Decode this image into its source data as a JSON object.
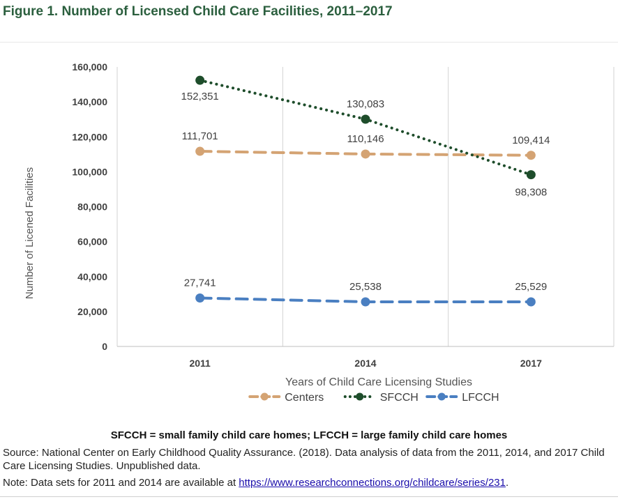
{
  "page": {
    "title": "Figure 1. Number of Licensed Child Care Facilities, 2011–2017",
    "abbreviations": "SFCCH = small family child care homes; LFCCH = large family child care homes",
    "source": "Source: National Center on Early Childhood Quality Assurance. (2018). Data analysis of data from the 2011, 2014, and 2017 Child Care Licensing Studies. Unpublished data.",
    "note_prefix": "Note: Data sets for 2011 and 2014 are available at ",
    "note_link": "https://www.researchconnections.org/childcare/series/231",
    "note_suffix": "."
  },
  "chart_data": {
    "type": "line",
    "title": "",
    "xlabel": "Years of Child Care Licensing Studies",
    "ylabel": "Number of Licened Facilities",
    "categories": [
      "2011",
      "2014",
      "2017"
    ],
    "ylim": [
      0,
      160000
    ],
    "yticks": [
      0,
      20000,
      40000,
      60000,
      80000,
      100000,
      120000,
      140000,
      160000
    ],
    "ytick_labels": [
      "0",
      "20,000",
      "40,000",
      "60,000",
      "80,000",
      "100,000",
      "120,000",
      "140,000",
      "160,000"
    ],
    "grid": "vertical",
    "legend_position": "bottom",
    "series": [
      {
        "name": "Centers",
        "values": [
          111701,
          110146,
          109414
        ],
        "labels": [
          "111,701",
          "110,146",
          "109,414"
        ],
        "color": "#d4a373",
        "line_style": "dashed"
      },
      {
        "name": "SFCCH",
        "values": [
          152351,
          130083,
          98308
        ],
        "labels": [
          "152,351",
          "130,083",
          "98,308"
        ],
        "color": "#1e4d2b",
        "line_style": "dotted"
      },
      {
        "name": "LFCCH",
        "values": [
          27741,
          25538,
          25529
        ],
        "labels": [
          "27,741",
          "25,538",
          "25,529"
        ],
        "color": "#4a7fc1",
        "line_style": "dashed"
      }
    ]
  }
}
